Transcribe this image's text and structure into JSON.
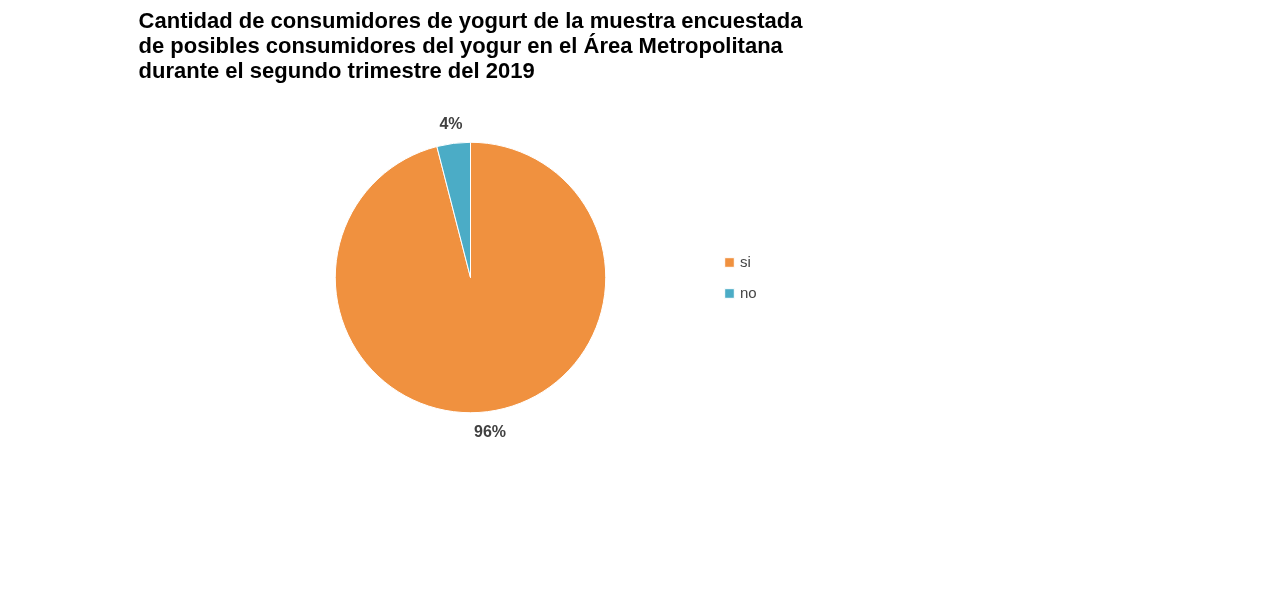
{
  "chart_data": {
    "type": "pie",
    "title": "Cantidad de consumidores de yogurt de la muestra encuestada\nde posibles consumidores del yogur en el Área Metropolitana\ndurante el segundo trimestre del 2019",
    "categories": [
      "si",
      "no"
    ],
    "values": [
      96,
      4
    ],
    "colors": [
      "#f0913f",
      "#4bacc6"
    ],
    "value_labels": [
      "96%",
      "4%"
    ],
    "legend": "right"
  }
}
